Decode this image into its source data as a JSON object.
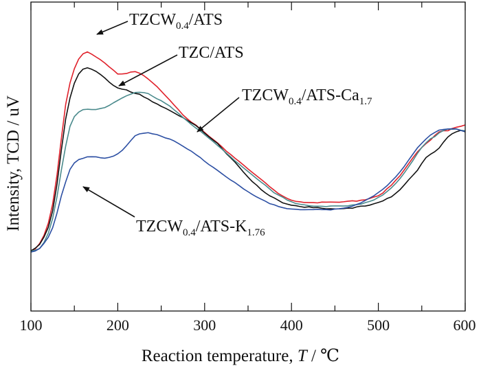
{
  "chart_data": {
    "type": "line",
    "xlabel": {
      "pre": "Reaction temperature, ",
      "var": "T",
      "post": " / ℃"
    },
    "ylabel": "Intensity, TCD / uV",
    "xlim": [
      100,
      600
    ],
    "xticks": [
      100,
      200,
      300,
      400,
      500,
      600
    ],
    "xtick_labels": [
      "100",
      "200",
      "300",
      "400",
      "500",
      "600"
    ],
    "ylim": [
      0,
      100
    ],
    "y_ticks_labeled": false,
    "grid": false,
    "legend": "none (direct arrow annotations)",
    "x": [
      100,
      105,
      110,
      115,
      120,
      125,
      130,
      135,
      140,
      145,
      150,
      155,
      160,
      165,
      170,
      175,
      180,
      185,
      190,
      195,
      200,
      205,
      210,
      215,
      220,
      225,
      230,
      235,
      240,
      245,
      250,
      255,
      260,
      265,
      270,
      275,
      280,
      285,
      290,
      295,
      300,
      305,
      310,
      315,
      320,
      325,
      330,
      335,
      340,
      345,
      350,
      355,
      360,
      365,
      370,
      375,
      380,
      385,
      390,
      395,
      400,
      405,
      410,
      415,
      420,
      425,
      430,
      435,
      440,
      445,
      450,
      455,
      460,
      465,
      470,
      475,
      480,
      485,
      490,
      495,
      500,
      505,
      510,
      515,
      520,
      525,
      530,
      535,
      540,
      545,
      550,
      555,
      560,
      565,
      570,
      575,
      580,
      585,
      590,
      595,
      600
    ],
    "series": [
      {
        "color": "#e0212b",
        "values": [
          8.5,
          9.5,
          11.5,
          15,
          20,
          28,
          40,
          55,
          69,
          78,
          84,
          88,
          90,
          91,
          90,
          89,
          88,
          86.5,
          85,
          83.5,
          82,
          82,
          82.2,
          82.5,
          82.6,
          82,
          81,
          79.5,
          78,
          76.5,
          75,
          73,
          71,
          69,
          67,
          65,
          63.5,
          62,
          60.5,
          59,
          57.5,
          56,
          54.5,
          53,
          51.5,
          50,
          48.5,
          47,
          45.5,
          44,
          42.5,
          41,
          39.5,
          38,
          36.5,
          35,
          33.5,
          32,
          31,
          30,
          29.5,
          29,
          29,
          28.5,
          28.5,
          28.5,
          28.5,
          28.5,
          28.5,
          28.5,
          28.5,
          28.5,
          28.6,
          28.8,
          29,
          29.2,
          29.5,
          29.8,
          30.2,
          30.8,
          31.5,
          32.5,
          34,
          35.5,
          37.5,
          39.5,
          42,
          44.5,
          47,
          49.5,
          51.5,
          53,
          54.5,
          56.5,
          58,
          58.5,
          58.5,
          59,
          59.5,
          60,
          60.5
        ]
      },
      {
        "color": "#111111",
        "values": [
          8.5,
          9.5,
          11,
          14,
          18,
          25,
          36,
          50,
          63,
          72,
          78,
          82,
          84,
          84.5,
          84,
          83,
          81.5,
          80,
          78.5,
          77,
          76,
          75.5,
          75,
          74.5,
          74,
          73.5,
          72.5,
          71.5,
          70.5,
          69.5,
          68.5,
          67.5,
          66.5,
          65.5,
          64.5,
          63.5,
          62.5,
          61.5,
          60.5,
          59,
          57.5,
          56,
          54.5,
          53,
          51,
          49,
          47,
          45,
          43,
          41,
          39,
          37,
          35.5,
          34,
          32.5,
          31.5,
          30.5,
          29.5,
          28.5,
          28,
          27.5,
          27,
          26.8,
          26.5,
          26.5,
          26.3,
          26.2,
          26.1,
          26,
          26,
          26,
          26,
          26.1,
          26.2,
          26.3,
          26.5,
          26.8,
          27,
          27.4,
          27.8,
          28.3,
          29,
          30,
          31,
          32.5,
          34,
          36,
          38,
          40,
          42,
          44.5,
          47,
          48.5,
          49.5,
          51,
          53.5,
          55.5,
          57,
          58,
          58.5,
          58
        ]
      },
      {
        "color": "#4a8a8c",
        "values": [
          8,
          8.5,
          9.5,
          12,
          16,
          22,
          31,
          42,
          52,
          60,
          64,
          66,
          67,
          67,
          67,
          67,
          67.5,
          68,
          69,
          70,
          71,
          72,
          72.8,
          73.5,
          74,
          74.2,
          74,
          73.5,
          72.5,
          71.5,
          70.5,
          69.5,
          68.5,
          67,
          65.5,
          64,
          62.5,
          61,
          59.5,
          58,
          56.5,
          55,
          53.5,
          52,
          50.5,
          49,
          47.5,
          46,
          44.5,
          43,
          41.5,
          40,
          38.5,
          37,
          35.5,
          34,
          32.5,
          31.5,
          30.5,
          29.5,
          28.8,
          28.3,
          27.9,
          27.6,
          27.4,
          27.2,
          27.1,
          27,
          27,
          27,
          27,
          27,
          27,
          27.1,
          27.3,
          27.6,
          28,
          28.5,
          29.1,
          29.8,
          30.7,
          31.8,
          33.1,
          34.6,
          36.4,
          38.4,
          40.7,
          43.3,
          46,
          48.7,
          51.3,
          53.5,
          55,
          56,
          57.5,
          58.5,
          59,
          59,
          59,
          58.5,
          58
        ]
      },
      {
        "color": "#2c4fa3",
        "values": [
          8,
          8.5,
          9.5,
          11.5,
          14,
          18,
          24,
          31,
          37,
          42,
          45,
          46.5,
          47,
          47.5,
          47.5,
          47.5,
          47.2,
          47,
          47,
          47.5,
          48.5,
          50,
          52,
          54,
          56,
          57,
          57.5,
          57.5,
          57.2,
          56.8,
          56.2,
          55.5,
          54.7,
          53.8,
          52.8,
          51.8,
          50.7,
          49.5,
          48.3,
          47,
          45.7,
          44.4,
          43.1,
          41.8,
          40.5,
          39.2,
          37.9,
          36.6,
          35.3,
          34,
          32.8,
          31.7,
          30.7,
          29.8,
          29,
          28.2,
          27.6,
          27,
          26.5,
          26.2,
          25.9,
          25.7,
          25.5,
          25.5,
          25.5,
          25.5,
          25.5,
          25.5,
          25.5,
          25.6,
          25.8,
          26,
          26.3,
          26.7,
          27.2,
          27.8,
          28.5,
          29.3,
          30.2,
          31.2,
          32.4,
          33.8,
          35.4,
          37.2,
          39.2,
          41.4,
          43.8,
          46.3,
          48.8,
          51.2,
          53.3,
          55,
          56.4,
          57.5,
          58.3,
          58.8,
          59,
          59,
          58.8,
          58.5,
          58
        ]
      }
    ],
    "annotations": [
      {
        "base": "TZCW",
        "sub": "0.4",
        "tail": "/ATS",
        "series_index": 0
      },
      {
        "base": "TZC/ATS",
        "sub": "",
        "tail": "",
        "series_index": 1
      },
      {
        "base": "TZCW",
        "sub": "0.4",
        "tail": "/ATS-Ca",
        "sub2": "1.7",
        "series_index": 2
      },
      {
        "base": "TZCW",
        "sub": "0.4",
        "tail": "/ATS-K",
        "sub2": "1.76",
        "series_index": 3
      }
    ]
  }
}
